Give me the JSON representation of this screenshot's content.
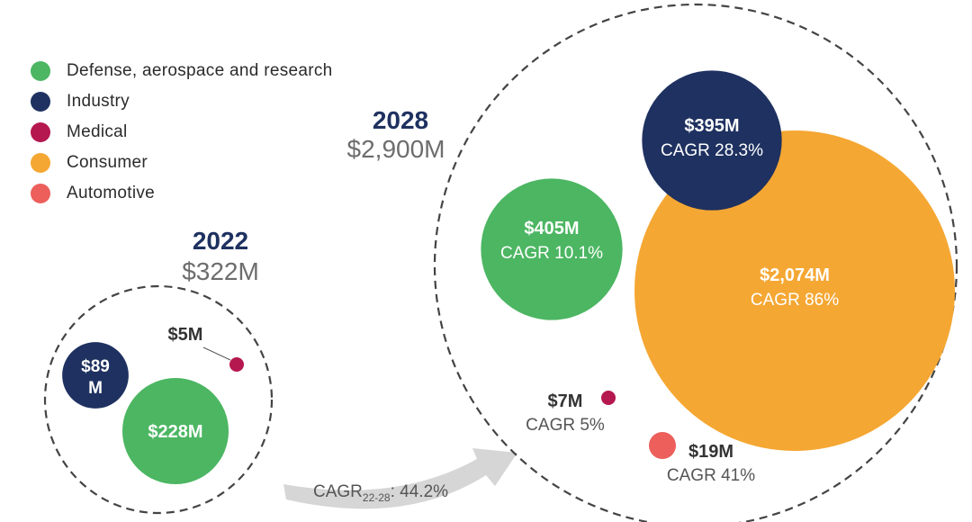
{
  "legend": [
    {
      "name": "Defense, aerospace and research",
      "color": "#4cb662",
      "icon": "green-circle"
    },
    {
      "name": "Industry",
      "color": "#1e3160",
      "icon": "navy-circle"
    },
    {
      "name": "Medical",
      "color": "#b5174f",
      "icon": "crimson-circle"
    },
    {
      "name": "Consumer",
      "color": "#f5a733",
      "icon": "orange-circle"
    },
    {
      "name": "Automotive",
      "color": "#ec5f5b",
      "icon": "salmon-circle"
    }
  ],
  "growth_arrow": {
    "label_prefix": "CAGR",
    "label_sub": "22-28",
    "label_suffix": ": 44.2%"
  },
  "chart_data": [
    {
      "type": "bubble",
      "title": "2022",
      "subtitle": "$322M",
      "total": 322,
      "series": [
        {
          "name": "Defense, aerospace and research",
          "value": 228,
          "label": "$228M"
        },
        {
          "name": "Industry",
          "value": 89,
          "label_lines": [
            "$89",
            "M"
          ]
        },
        {
          "name": "Medical",
          "value": 5,
          "label": "$5M"
        }
      ]
    },
    {
      "type": "bubble",
      "title": "2028",
      "subtitle": "$2,900M",
      "total": 2900,
      "series": [
        {
          "name": "Defense, aerospace and research",
          "value": 405,
          "label": "$405M",
          "cagr": "CAGR 10.1%"
        },
        {
          "name": "Industry",
          "value": 395,
          "label": "$395M",
          "cagr": "CAGR 28.3%"
        },
        {
          "name": "Consumer",
          "value": 2074,
          "label": "$2,074M",
          "cagr": "CAGR 86%"
        },
        {
          "name": "Medical",
          "value": 7,
          "label": "$7M",
          "cagr": "CAGR 5%"
        },
        {
          "name": "Automotive",
          "value": 19,
          "label": "$19M",
          "cagr": "CAGR 41%"
        }
      ]
    }
  ]
}
